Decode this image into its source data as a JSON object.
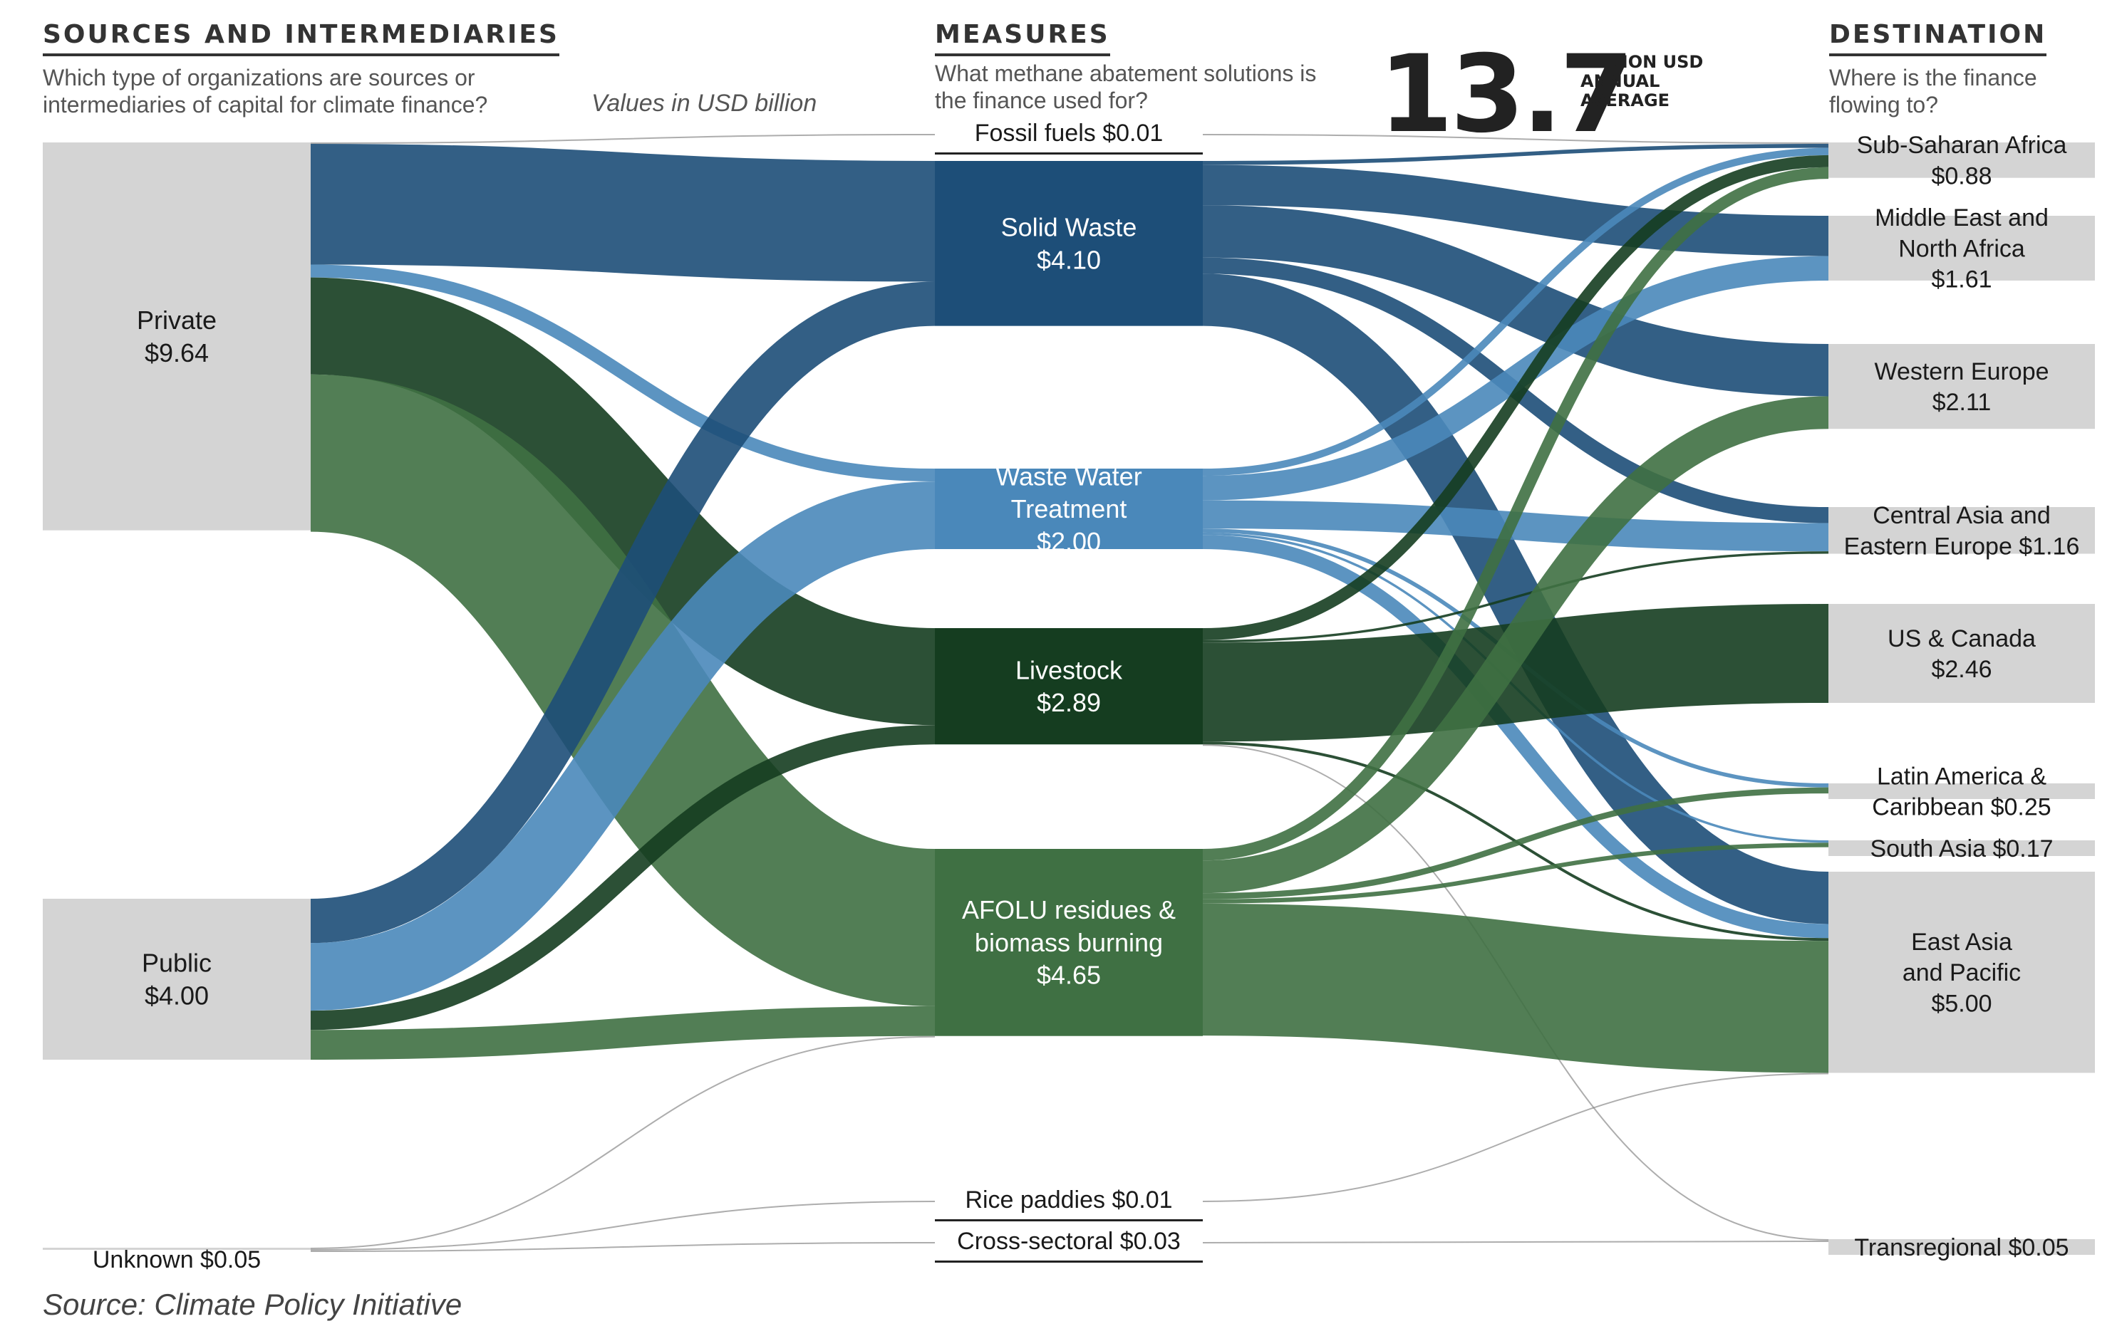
{
  "headers": {
    "sources": {
      "title": "SOURCES AND INTERMEDIARIES",
      "subtitle": "Which type of organizations are sources or intermediaries of capital for climate finance?"
    },
    "measures": {
      "title": "MEASURES",
      "subtitle": "What methane abatement solutions is the finance used for?"
    },
    "destination": {
      "title": "DESTINATION",
      "subtitle": "Where is the finance flowing to?"
    }
  },
  "units_note": "Values in USD billion",
  "total": {
    "value": "13.7",
    "label": "BILLION USD\nANNUAL\nAVERAGE"
  },
  "source_note": "Source: Climate Policy Initiative",
  "colors": {
    "node_gray": "#d4d4d4",
    "solid_waste": "#1d4e78",
    "waste_water": "#4a88ba",
    "livestock": "#153d20",
    "afolu": "#3f7043",
    "thin_link": "#8a8a8a"
  },
  "chart_data": {
    "type": "sankey",
    "units": "USD billion",
    "sources": [
      {
        "name": "Private",
        "label": "Private",
        "value_label": "$9.64",
        "value": 9.64
      },
      {
        "name": "Public",
        "label": "Public",
        "value_label": "$4.00",
        "value": 4.0
      },
      {
        "name": "Unknown",
        "label": "Unknown $0.05",
        "value": 0.05
      }
    ],
    "measures": [
      {
        "name": "Fossil fuels",
        "label": "Fossil fuels $0.01",
        "value": 0.01,
        "color": "solid_waste"
      },
      {
        "name": "Solid Waste",
        "label": "Solid Waste\n$4.10",
        "value": 4.1,
        "color": "solid_waste"
      },
      {
        "name": "Waste Water Treatment",
        "label": "Waste Water\nTreatment\n$2.00",
        "value": 2.0,
        "color": "waste_water"
      },
      {
        "name": "Livestock",
        "label": "Livestock\n$2.89",
        "value": 2.89,
        "color": "livestock"
      },
      {
        "name": "AFOLU residues & biomass burning",
        "label": "AFOLU residues &\nbiomass burning\n$4.65",
        "value": 4.65,
        "color": "afolu"
      },
      {
        "name": "Rice paddies",
        "label": "Rice paddies $0.01",
        "value": 0.01,
        "color": "afolu"
      },
      {
        "name": "Cross-sectoral",
        "label": "Cross-sectoral $0.03",
        "value": 0.03,
        "color": "afolu"
      }
    ],
    "destinations": [
      {
        "name": "Sub-Saharan Africa",
        "label": "Sub-Saharan Africa\n$0.88",
        "value": 0.88
      },
      {
        "name": "Middle East and North Africa",
        "label": "Middle East and\nNorth Africa\n$1.61",
        "value": 1.61
      },
      {
        "name": "Western Europe",
        "label": "Western Europe\n$2.11",
        "value": 2.11
      },
      {
        "name": "Central Asia and Eastern Europe",
        "label": "Central Asia and\nEastern Europe $1.16",
        "value": 1.16
      },
      {
        "name": "US & Canada",
        "label": "US & Canada\n$2.46",
        "value": 2.46
      },
      {
        "name": "Latin America & Caribbean",
        "label": "Latin America &\nCaribbean $0.25",
        "value": 0.25
      },
      {
        "name": "South Asia",
        "label": "South Asia $0.17",
        "value": 0.17
      },
      {
        "name": "East Asia and Pacific",
        "label": "East Asia\nand Pacific\n$5.00",
        "value": 5.0
      },
      {
        "name": "Transregional",
        "label": "Transregional $0.05",
        "value": 0.05
      }
    ],
    "links_source_to_measure": [
      {
        "source": "Private",
        "target": "Solid Waste",
        "value": 3.0
      },
      {
        "source": "Private",
        "target": "Waste Water Treatment",
        "value": 0.32
      },
      {
        "source": "Private",
        "target": "Livestock",
        "value": 2.41
      },
      {
        "source": "Private",
        "target": "AFOLU residues & biomass burning",
        "value": 3.91
      },
      {
        "source": "Public",
        "target": "Solid Waste",
        "value": 1.1
      },
      {
        "source": "Public",
        "target": "Waste Water Treatment",
        "value": 1.68
      },
      {
        "source": "Public",
        "target": "Livestock",
        "value": 0.48
      },
      {
        "source": "Public",
        "target": "AFOLU residues & biomass burning",
        "value": 0.74
      },
      {
        "source": "Private",
        "target": "Fossil fuels",
        "value": 0.01
      },
      {
        "source": "Unknown",
        "target": "Rice paddies",
        "value": 0.01
      },
      {
        "source": "Unknown",
        "target": "Cross-sectoral",
        "value": 0.03
      },
      {
        "source": "Unknown",
        "target": "AFOLU residues & biomass burning",
        "value": 0.01
      }
    ],
    "links_measure_to_destination": [
      {
        "source": "Fossil fuels",
        "target": "Sub-Saharan Africa",
        "value": 0.01
      },
      {
        "source": "Solid Waste",
        "target": "Sub-Saharan Africa",
        "value": 0.1
      },
      {
        "source": "Solid Waste",
        "target": "Middle East and North Africa",
        "value": 1.0
      },
      {
        "source": "Solid Waste",
        "target": "Western Europe",
        "value": 1.3
      },
      {
        "source": "Solid Waste",
        "target": "Central Asia and Eastern Europe",
        "value": 0.4
      },
      {
        "source": "Solid Waste",
        "target": "East Asia and Pacific",
        "value": 1.3
      },
      {
        "source": "Waste Water Treatment",
        "target": "Sub-Saharan Africa",
        "value": 0.18
      },
      {
        "source": "Waste Water Treatment",
        "target": "Middle East and North Africa",
        "value": 0.61
      },
      {
        "source": "Waste Water Treatment",
        "target": "Central Asia and Eastern Europe",
        "value": 0.7
      },
      {
        "source": "Waste Water Treatment",
        "target": "Latin America & Caribbean",
        "value": 0.1
      },
      {
        "source": "Waste Water Treatment",
        "target": "South Asia",
        "value": 0.06
      },
      {
        "source": "Waste Water Treatment",
        "target": "East Asia and Pacific",
        "value": 0.35
      },
      {
        "source": "Livestock",
        "target": "Sub-Saharan Africa",
        "value": 0.3
      },
      {
        "source": "Livestock",
        "target": "US & Canada",
        "value": 2.46
      },
      {
        "source": "Livestock",
        "target": "Central Asia and Eastern Europe",
        "value": 0.06
      },
      {
        "source": "Livestock",
        "target": "East Asia and Pacific",
        "value": 0.07
      },
      {
        "source": "AFOLU residues & biomass burning",
        "target": "Sub-Saharan Africa",
        "value": 0.29
      },
      {
        "source": "AFOLU residues & biomass burning",
        "target": "Western Europe",
        "value": 0.81
      },
      {
        "source": "AFOLU residues & biomass burning",
        "target": "Latin America & Caribbean",
        "value": 0.15
      },
      {
        "source": "AFOLU residues & biomass burning",
        "target": "South Asia",
        "value": 0.11
      },
      {
        "source": "AFOLU residues & biomass burning",
        "target": "East Asia and Pacific",
        "value": 3.28
      },
      {
        "source": "Rice paddies",
        "target": "East Asia and Pacific",
        "value": 0.01
      },
      {
        "source": "Cross-sectoral",
        "target": "Transregional",
        "value": 0.03
      },
      {
        "source": "Livestock",
        "target": "Transregional",
        "value": 0.02
      }
    ]
  }
}
